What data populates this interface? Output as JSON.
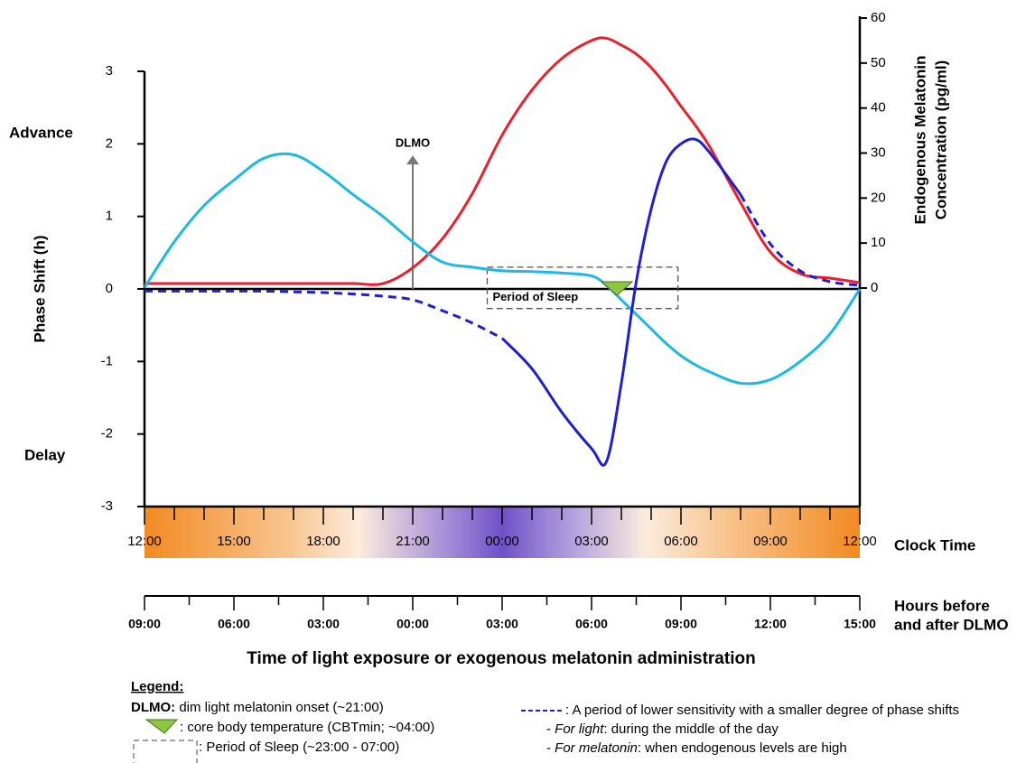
{
  "chart_data": {
    "type": "line",
    "x_title": "Time of light exposure or exogenous melatonin administration",
    "y_title": "Phase Shift (h)",
    "y2_title": [
      "Endogenous Melatonin",
      "Concentration (pg/ml)"
    ],
    "y_side_labels": {
      "advance": "Advance",
      "delay": "Delay"
    },
    "x_band_title": "Clock Time",
    "x2_title": [
      "Hours before",
      "and after DLMO"
    ],
    "xlim": [
      0,
      24
    ],
    "xticks": [
      {
        "value": 0,
        "label": "12:00"
      },
      {
        "value": 3,
        "label": "15:00"
      },
      {
        "value": 6,
        "label": "18:00"
      },
      {
        "value": 9,
        "label": "21:00"
      },
      {
        "value": 12,
        "label": "00:00"
      },
      {
        "value": 15,
        "label": "03:00"
      },
      {
        "value": 18,
        "label": "06:00"
      },
      {
        "value": 21,
        "label": "09:00"
      },
      {
        "value": 24,
        "label": "12:00"
      }
    ],
    "xminorticks": [
      1,
      2,
      4,
      5,
      7,
      8,
      10,
      11,
      13,
      14,
      16,
      17,
      19,
      20,
      22,
      23
    ],
    "x2ticks": [
      {
        "value": 0,
        "label": "09:00"
      },
      {
        "value": 3,
        "label": "06:00"
      },
      {
        "value": 6,
        "label": "03:00"
      },
      {
        "value": 9,
        "label": "00:00"
      },
      {
        "value": 12,
        "label": "03:00"
      },
      {
        "value": 15,
        "label": "06:00"
      },
      {
        "value": 18,
        "label": "09:00"
      },
      {
        "value": 21,
        "label": "12:00"
      },
      {
        "value": 24,
        "label": "15:00"
      }
    ],
    "x2minorticks": [
      1.5,
      4.5,
      7.5,
      10.5,
      13.5,
      16.5,
      19.5,
      22.5
    ],
    "ylim": [
      -3,
      3
    ],
    "yticks": [
      -3,
      -2,
      -1,
      0,
      1,
      2,
      3
    ],
    "y2lim": [
      0,
      60
    ],
    "y2ticks": [
      0,
      10,
      20,
      30,
      40,
      50,
      60
    ],
    "x": [
      0,
      1,
      2,
      3,
      4,
      5,
      6,
      7,
      8,
      9,
      10,
      11,
      12,
      13,
      14,
      15,
      15.5,
      16,
      16.5,
      17,
      17.5,
      18,
      18.5,
      19,
      20,
      21,
      22,
      23,
      24
    ],
    "series": [
      {
        "color": "#1cb8e6",
        "style": "solid",
        "values": [
          0.02,
          0.65,
          1.15,
          1.5,
          1.8,
          1.85,
          1.62,
          1.3,
          1.0,
          0.65,
          0.37,
          0.3,
          0.25,
          0.24,
          0.22,
          0.18,
          0.05,
          -0.15,
          -0.35,
          -0.55,
          -0.75,
          -0.92,
          -1.05,
          -1.15,
          -1.3,
          -1.25,
          -1.0,
          -0.62,
          0
        ]
      },
      {
        "color": "#e8212b",
        "style": "solid",
        "axis": "y2",
        "values": [
          1,
          1,
          1,
          1,
          1,
          1,
          1,
          1,
          1,
          4.5,
          11,
          21,
          34,
          44,
          51,
          55,
          55.5,
          54,
          52,
          49,
          45,
          40.4,
          36,
          31,
          19,
          8,
          3.2,
          2.2,
          1.2
        ]
      },
      {
        "color": "#1f1fcf",
        "style": "solid",
        "values": [
          null,
          null,
          null,
          null,
          null,
          null,
          null,
          null,
          null,
          null,
          null,
          null,
          -0.68,
          -1.1,
          -1.7,
          -2.2,
          -2.38,
          -1.3,
          0.1,
          1.1,
          1.75,
          2.0,
          2.06,
          1.86,
          1.3,
          null,
          null,
          null,
          null
        ]
      },
      {
        "color": "#1f1fcf",
        "style": "dashed",
        "values": [
          -0.03,
          -0.03,
          -0.03,
          -0.03,
          -0.03,
          -0.04,
          -0.05,
          -0.07,
          -0.1,
          -0.15,
          -0.3,
          -0.47,
          -0.68,
          null,
          null,
          null,
          null,
          null,
          null,
          null,
          null,
          null,
          null,
          null,
          1.3,
          0.62,
          0.25,
          0.1,
          0.05
        ]
      }
    ],
    "dlmo": {
      "text": "DLMO",
      "x": 9,
      "y": 1.84
    },
    "sleep": {
      "text": "Period of Sleep",
      "x": [
        11.5,
        17.9
      ],
      "y": [
        0.3,
        -0.27
      ]
    },
    "cbtmin": {
      "x": 15.85,
      "y": 0
    },
    "legend_notes": {
      "title": "Legend:",
      "dlmo_term": "DLMO:",
      "dlmo_text": "dim light melatonin onset (~21:00)",
      "cbt_text": ": core body temperature (CBTmin; ~04:00)",
      "sleep_text": ": Period of Sleep (~23:00 - 07:00)",
      "dashed_text": ": A period of lower sensitivity with a smaller degree of phase shifts",
      "light_prefix": "- ",
      "light_term": "For light",
      "light_text": ": during the middle of the day",
      "mel_prefix": "- ",
      "mel_term": "For melatonin",
      "mel_text": ": when endogenous levels are high"
    }
  }
}
